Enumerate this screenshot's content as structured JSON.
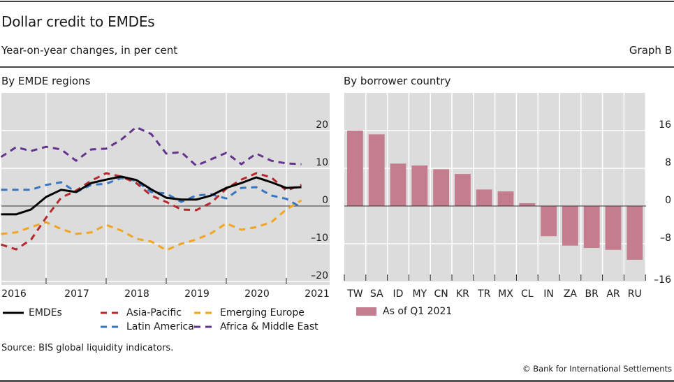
{
  "header": {
    "title": "Dollar credit to EMDEs",
    "subtitle": "Year-on-year changes, in per cent",
    "graph_id": "Graph B"
  },
  "footer": {
    "source": "Source: BIS global liquidity indicators.",
    "copyright": "© Bank for International Settlements"
  },
  "colors": {
    "plot_bg": "#dcdcdc",
    "grid": "#ffffff",
    "emdes": "#000000",
    "asia_pacific": "#b5282e",
    "latin_america": "#3a75bf",
    "emerging_europe": "#f2a51e",
    "africa_middle_east": "#64338d",
    "bar": "#c47d8e"
  },
  "chart_data": [
    {
      "type": "line",
      "title": "By EMDE regions",
      "xlabel": "",
      "ylabel": "Year-on-year changes, in per cent",
      "x_ticks": [
        "2016",
        "2017",
        "2018",
        "2019",
        "2020",
        "2021"
      ],
      "x": [
        "Q1 2016",
        "Q2 2016",
        "Q3 2016",
        "Q4 2016",
        "Q1 2017",
        "Q2 2017",
        "Q3 2017",
        "Q4 2017",
        "Q1 2018",
        "Q2 2018",
        "Q3 2018",
        "Q4 2018",
        "Q1 2019",
        "Q2 2019",
        "Q3 2019",
        "Q4 2019",
        "Q1 2020",
        "Q2 2020",
        "Q3 2020",
        "Q4 2020",
        "Q1 2021"
      ],
      "ylim": [
        -20,
        28
      ],
      "y_ticks": [
        -20,
        -10,
        0,
        10,
        20
      ],
      "y_tick_labels": [
        "–20",
        "–10",
        "0",
        "10",
        "20"
      ],
      "y_axis_side": "right",
      "grid": true,
      "legend_position": "bottom",
      "series": [
        {
          "name": "EMDEs",
          "key": "emdes",
          "style": "solid",
          "values": [
            -2.2,
            -2.2,
            -0.9,
            2.4,
            4.3,
            3.7,
            6.1,
            7.0,
            7.8,
            6.9,
            4.4,
            2.2,
            1.7,
            1.7,
            2.8,
            4.8,
            6.1,
            7.6,
            6.3,
            4.8,
            5.0
          ]
        },
        {
          "name": "Asia-Pacific",
          "key": "asia_pacific",
          "style": "dashed",
          "values": [
            -10.2,
            -11.5,
            -8.9,
            -3.1,
            2.2,
            4.1,
            6.7,
            8.7,
            7.8,
            6.1,
            2.8,
            1.1,
            -0.9,
            -1.1,
            0.9,
            4.6,
            7.0,
            8.7,
            7.6,
            4.1,
            5.6
          ]
        },
        {
          "name": "Latin America",
          "key": "latin_america",
          "style": "dashed",
          "values": [
            4.3,
            4.3,
            4.3,
            5.6,
            6.3,
            3.7,
            5.6,
            5.9,
            7.4,
            6.7,
            3.7,
            3.3,
            1.1,
            2.8,
            3.1,
            2.0,
            4.8,
            5.0,
            2.8,
            1.9,
            -0.4
          ]
        },
        {
          "name": "Emerging Europe",
          "key": "emerging_europe",
          "style": "dashed",
          "values": [
            -7.4,
            -7.0,
            -5.6,
            -4.3,
            -6.1,
            -7.4,
            -7.0,
            -5.0,
            -6.5,
            -8.7,
            -9.4,
            -11.7,
            -10.0,
            -8.9,
            -7.2,
            -4.6,
            -6.3,
            -5.6,
            -4.3,
            -0.9,
            1.5
          ]
        },
        {
          "name": "Africa & Middle East",
          "key": "africa_middle_east",
          "style": "dashed",
          "values": [
            13.0,
            15.6,
            14.6,
            15.7,
            15.0,
            12.0,
            15.0,
            15.2,
            17.6,
            20.9,
            19.1,
            13.9,
            14.3,
            10.7,
            12.4,
            14.1,
            11.1,
            13.9,
            12.0,
            11.3,
            11.1
          ]
        }
      ]
    },
    {
      "type": "bar",
      "title": "By borrower country",
      "xlabel": "",
      "ylabel": "Year-on-year changes, in per cent",
      "categories": [
        "TW",
        "SA",
        "ID",
        "MY",
        "CN",
        "KR",
        "TR",
        "MX",
        "CL",
        "IN",
        "ZA",
        "BR",
        "AR",
        "RU"
      ],
      "series": [
        {
          "name": "As of Q1 2021",
          "key": "bar",
          "values": [
            16.0,
            15.2,
            9.0,
            8.6,
            7.8,
            6.8,
            3.5,
            3.1,
            0.6,
            -6.4,
            -8.4,
            -8.9,
            -9.3,
            -11.4
          ]
        }
      ],
      "ylim": [
        -16,
        24
      ],
      "y_ticks": [
        -16,
        -8,
        0,
        8,
        16
      ],
      "y_tick_labels": [
        "–16",
        "–8",
        "0",
        "8",
        "16"
      ],
      "y_axis_side": "right",
      "grid": true,
      "legend_position": "bottom"
    }
  ]
}
